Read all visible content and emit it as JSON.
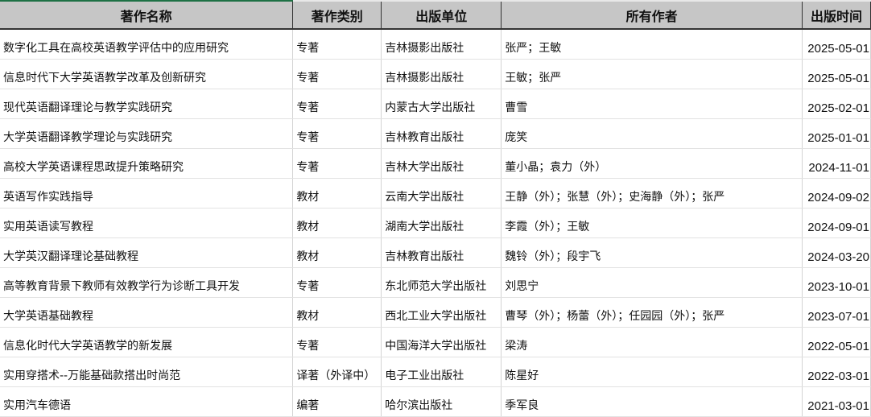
{
  "columns": [
    "著作名称",
    "著作类别",
    "出版单位",
    "所有作者",
    "出版时间"
  ],
  "rows": [
    [
      "数字化工具在高校英语教学评估中的应用研究",
      "专著",
      "吉林摄影出版社",
      "张严；王敏",
      "2025-05-01"
    ],
    [
      "信息时代下大学英语教学改革及创新研究",
      "专著",
      "吉林摄影出版社",
      "王敏；张严",
      "2025-05-01"
    ],
    [
      "现代英语翻译理论与教学实践研究",
      "专著",
      "内蒙古大学出版社",
      "曹雪",
      "2025-02-01"
    ],
    [
      "大学英语翻译教学理论与实践研究",
      "专著",
      "吉林教育出版社",
      "庞笑",
      "2025-01-01"
    ],
    [
      "高校大学英语课程思政提升策略研究",
      "专著",
      "吉林大学出版社",
      "董小晶；袁力（外）",
      "2024-11-01"
    ],
    [
      "英语写作实践指导",
      "教材",
      "云南大学出版社",
      "王静（外）；张慧（外）；史海静（外）；张严",
      "2024-09-02"
    ],
    [
      "实用英语读写教程",
      "教材",
      "湖南大学出版社",
      "李霞（外）；王敏",
      "2024-09-01"
    ],
    [
      "大学英汉翻译理论基础教程",
      "教材",
      "吉林教育出版社",
      "魏铃（外）；段宇飞",
      "2024-03-20"
    ],
    [
      "高等教育背景下教师有效教学行为诊断工具开发",
      "专著",
      "东北师范大学出版社",
      "刘思宁",
      "2023-10-01"
    ],
    [
      "大学英语基础教程",
      "教材",
      "西北工业大学出版社",
      "曹琴（外）；杨蕾（外）；任园园（外）；张严",
      "2023-07-01"
    ],
    [
      "信息化时代大学英语教学的新发展",
      "专著",
      "中国海洋大学出版社",
      "梁涛",
      "2022-05-01"
    ],
    [
      "实用穿搭术--万能基础款搭出时尚范",
      "译著（外译中）",
      "电子工业出版社",
      "陈星好",
      "2022-03-01"
    ],
    [
      "实用汽车德语",
      "编著",
      "哈尔滨出版社",
      "季军良",
      "2021-03-01"
    ]
  ]
}
